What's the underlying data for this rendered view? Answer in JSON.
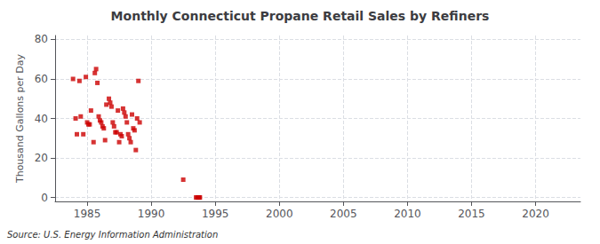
{
  "chart_data": {
    "type": "scatter",
    "title": "Monthly Connecticut Propane Retail Sales by Refiners",
    "ylabel": "Thousand Gallons per Day",
    "annotation": "Source: U.S. Energy Information Administration",
    "color": "#cc0000",
    "marker": "square",
    "grid": true,
    "xlim": [
      1982.5,
      2023.5
    ],
    "ylim": [
      -2,
      82
    ],
    "xticks": [
      1985,
      1990,
      1995,
      2000,
      2005,
      2010,
      2015,
      2020
    ],
    "yticks": [
      0,
      20,
      40,
      60,
      80
    ],
    "x": [
      1983.9,
      1984.1,
      1984.2,
      1984.4,
      1984.5,
      1984.7,
      1984.9,
      1985.0,
      1985.1,
      1985.2,
      1985.3,
      1985.5,
      1985.6,
      1985.7,
      1985.8,
      1985.9,
      1986.0,
      1986.1,
      1986.2,
      1986.3,
      1986.4,
      1986.5,
      1986.7,
      1986.8,
      1986.9,
      1987.0,
      1987.1,
      1987.2,
      1987.3,
      1987.4,
      1987.5,
      1987.6,
      1987.7,
      1987.8,
      1987.9,
      1988.0,
      1988.1,
      1988.2,
      1988.3,
      1988.4,
      1988.5,
      1988.6,
      1988.7,
      1988.8,
      1988.9,
      1989.0,
      1989.1,
      1992.5,
      1993.5,
      1993.6,
      1993.65,
      1993.7,
      1993.75,
      1993.8
    ],
    "values": [
      60,
      40,
      32,
      59,
      41,
      32,
      61,
      38,
      37,
      37,
      44,
      28,
      63,
      65,
      58,
      41,
      39,
      38,
      36,
      35,
      29,
      47,
      50,
      48,
      46,
      38,
      36,
      33,
      33,
      44,
      28,
      32,
      31,
      45,
      43,
      41,
      38,
      32,
      30,
      28,
      42,
      35,
      34,
      24,
      40,
      59,
      38,
      9,
      0,
      0,
      0,
      0,
      0,
      0
    ]
  }
}
